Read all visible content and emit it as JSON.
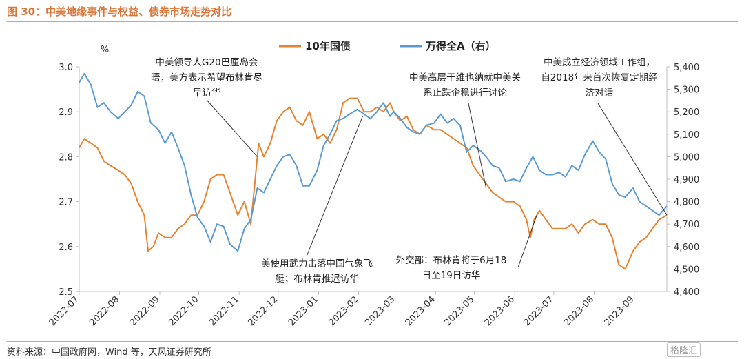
{
  "figure": {
    "title": "图 30：中美地缘事件与权益、债券市场走势对比",
    "source": "资料来源：中国政府网，Wind 等，天风证券研究所",
    "watermark": "格隆汇"
  },
  "chart_data": {
    "type": "line",
    "title": "",
    "left_unit": "%",
    "legend_position": "top-center",
    "grid": false,
    "x_tick_labels": [
      "2022-07",
      "2022-08",
      "2022-09",
      "2022-10",
      "2022-11",
      "2022-12",
      "2023-01",
      "2023-02",
      "2023-03",
      "2023-04",
      "2023-05",
      "2023-06",
      "2023-07",
      "2023-08",
      "2023-09"
    ],
    "x_range": [
      "2022-07-01",
      "2023-09-26"
    ],
    "y_left": {
      "min": 2.5,
      "max": 3.0,
      "ticks": [
        "2.5",
        "2.6",
        "2.7",
        "2.8",
        "2.9",
        "3.0"
      ]
    },
    "y_right": {
      "min": 4400,
      "max": 5400,
      "ticks": [
        "4,400",
        "4,500",
        "4,600",
        "4,700",
        "4,800",
        "4,900",
        "5,000",
        "5,100",
        "5,200",
        "5,300",
        "5,400"
      ]
    },
    "colors": {
      "bond": "#e8822e",
      "wind_a": "#5b9bd5",
      "annotation": "#333333",
      "axis": "#bfbfbf"
    },
    "series": [
      {
        "name": "10年国债",
        "axis": "left",
        "color": "#e8822e",
        "points": [
          [
            "2022-07-01",
            2.82
          ],
          [
            "2022-07-05",
            2.84
          ],
          [
            "2022-07-10",
            2.83
          ],
          [
            "2022-07-15",
            2.82
          ],
          [
            "2022-07-20",
            2.79
          ],
          [
            "2022-07-25",
            2.78
          ],
          [
            "2022-07-31",
            2.77
          ],
          [
            "2022-08-05",
            2.76
          ],
          [
            "2022-08-10",
            2.74
          ],
          [
            "2022-08-15",
            2.7
          ],
          [
            "2022-08-20",
            2.67
          ],
          [
            "2022-08-23",
            2.59
          ],
          [
            "2022-08-27",
            2.6
          ],
          [
            "2022-08-31",
            2.63
          ],
          [
            "2022-09-05",
            2.62
          ],
          [
            "2022-09-10",
            2.62
          ],
          [
            "2022-09-15",
            2.64
          ],
          [
            "2022-09-20",
            2.65
          ],
          [
            "2022-09-25",
            2.67
          ],
          [
            "2022-09-30",
            2.67
          ],
          [
            "2022-10-05",
            2.7
          ],
          [
            "2022-10-10",
            2.75
          ],
          [
            "2022-10-15",
            2.76
          ],
          [
            "2022-10-20",
            2.76
          ],
          [
            "2022-10-25",
            2.72
          ],
          [
            "2022-10-31",
            2.67
          ],
          [
            "2022-11-05",
            2.7
          ],
          [
            "2022-11-10",
            2.65
          ],
          [
            "2022-11-13",
            2.74
          ],
          [
            "2022-11-16",
            2.83
          ],
          [
            "2022-11-20",
            2.8
          ],
          [
            "2022-11-25",
            2.83
          ],
          [
            "2022-11-30",
            2.88
          ],
          [
            "2022-12-05",
            2.9
          ],
          [
            "2022-12-10",
            2.91
          ],
          [
            "2022-12-15",
            2.88
          ],
          [
            "2022-12-20",
            2.87
          ],
          [
            "2022-12-25",
            2.9
          ],
          [
            "2022-12-31",
            2.84
          ],
          [
            "2023-01-05",
            2.85
          ],
          [
            "2023-01-10",
            2.83
          ],
          [
            "2023-01-15",
            2.86
          ],
          [
            "2023-01-20",
            2.92
          ],
          [
            "2023-01-25",
            2.93
          ],
          [
            "2023-01-31",
            2.93
          ],
          [
            "2023-02-05",
            2.9
          ],
          [
            "2023-02-10",
            2.9
          ],
          [
            "2023-02-15",
            2.91
          ],
          [
            "2023-02-20",
            2.9
          ],
          [
            "2023-02-25",
            2.92
          ],
          [
            "2023-02-28",
            2.9
          ],
          [
            "2023-03-05",
            2.88
          ],
          [
            "2023-03-10",
            2.89
          ],
          [
            "2023-03-15",
            2.86
          ],
          [
            "2023-03-20",
            2.85
          ],
          [
            "2023-03-25",
            2.87
          ],
          [
            "2023-03-31",
            2.86
          ],
          [
            "2023-04-05",
            2.86
          ],
          [
            "2023-04-10",
            2.85
          ],
          [
            "2023-04-15",
            2.84
          ],
          [
            "2023-04-20",
            2.83
          ],
          [
            "2023-04-25",
            2.82
          ],
          [
            "2023-04-30",
            2.78
          ],
          [
            "2023-05-05",
            2.76
          ],
          [
            "2023-05-10",
            2.74
          ],
          [
            "2023-05-15",
            2.72
          ],
          [
            "2023-05-20",
            2.71
          ],
          [
            "2023-05-25",
            2.7
          ],
          [
            "2023-05-31",
            2.7
          ],
          [
            "2023-06-05",
            2.69
          ],
          [
            "2023-06-10",
            2.66
          ],
          [
            "2023-06-13",
            2.62
          ],
          [
            "2023-06-16",
            2.66
          ],
          [
            "2023-06-20",
            2.68
          ],
          [
            "2023-06-25",
            2.66
          ],
          [
            "2023-06-30",
            2.64
          ],
          [
            "2023-07-05",
            2.64
          ],
          [
            "2023-07-10",
            2.64
          ],
          [
            "2023-07-15",
            2.65
          ],
          [
            "2023-07-20",
            2.63
          ],
          [
            "2023-07-25",
            2.65
          ],
          [
            "2023-07-31",
            2.66
          ],
          [
            "2023-08-05",
            2.65
          ],
          [
            "2023-08-10",
            2.65
          ],
          [
            "2023-08-15",
            2.62
          ],
          [
            "2023-08-20",
            2.56
          ],
          [
            "2023-08-25",
            2.55
          ],
          [
            "2023-08-31",
            2.59
          ],
          [
            "2023-09-05",
            2.61
          ],
          [
            "2023-09-10",
            2.62
          ],
          [
            "2023-09-15",
            2.64
          ],
          [
            "2023-09-20",
            2.66
          ],
          [
            "2023-09-26",
            2.67
          ]
        ]
      },
      {
        "name": "万得全A（右）",
        "axis": "right",
        "color": "#5b9bd5",
        "points": [
          [
            "2022-07-01",
            5330
          ],
          [
            "2022-07-05",
            5370
          ],
          [
            "2022-07-10",
            5320
          ],
          [
            "2022-07-15",
            5220
          ],
          [
            "2022-07-20",
            5240
          ],
          [
            "2022-07-25",
            5200
          ],
          [
            "2022-07-31",
            5170
          ],
          [
            "2022-08-05",
            5200
          ],
          [
            "2022-08-10",
            5230
          ],
          [
            "2022-08-15",
            5290
          ],
          [
            "2022-08-20",
            5270
          ],
          [
            "2022-08-25",
            5150
          ],
          [
            "2022-08-31",
            5120
          ],
          [
            "2022-09-05",
            5060
          ],
          [
            "2022-09-10",
            5110
          ],
          [
            "2022-09-15",
            5040
          ],
          [
            "2022-09-20",
            4960
          ],
          [
            "2022-09-25",
            4830
          ],
          [
            "2022-09-30",
            4730
          ],
          [
            "2022-10-05",
            4690
          ],
          [
            "2022-10-10",
            4620
          ],
          [
            "2022-10-15",
            4700
          ],
          [
            "2022-10-20",
            4690
          ],
          [
            "2022-10-25",
            4610
          ],
          [
            "2022-10-31",
            4580
          ],
          [
            "2022-11-05",
            4680
          ],
          [
            "2022-11-10",
            4720
          ],
          [
            "2022-11-15",
            4860
          ],
          [
            "2022-11-20",
            4840
          ],
          [
            "2022-11-25",
            4900
          ],
          [
            "2022-11-30",
            4960
          ],
          [
            "2022-12-05",
            5000
          ],
          [
            "2022-12-10",
            5010
          ],
          [
            "2022-12-15",
            4960
          ],
          [
            "2022-12-20",
            4870
          ],
          [
            "2022-12-25",
            4870
          ],
          [
            "2022-12-31",
            4940
          ],
          [
            "2023-01-05",
            5050
          ],
          [
            "2023-01-10",
            5100
          ],
          [
            "2023-01-15",
            5160
          ],
          [
            "2023-01-20",
            5170
          ],
          [
            "2023-01-25",
            5190
          ],
          [
            "2023-01-31",
            5210
          ],
          [
            "2023-02-05",
            5190
          ],
          [
            "2023-02-10",
            5170
          ],
          [
            "2023-02-15",
            5200
          ],
          [
            "2023-02-20",
            5240
          ],
          [
            "2023-02-25",
            5180
          ],
          [
            "2023-02-28",
            5200
          ],
          [
            "2023-03-05",
            5170
          ],
          [
            "2023-03-10",
            5130
          ],
          [
            "2023-03-15",
            5110
          ],
          [
            "2023-03-20",
            5100
          ],
          [
            "2023-03-25",
            5140
          ],
          [
            "2023-03-31",
            5150
          ],
          [
            "2023-04-05",
            5190
          ],
          [
            "2023-04-10",
            5150
          ],
          [
            "2023-04-15",
            5170
          ],
          [
            "2023-04-20",
            5140
          ],
          [
            "2023-04-25",
            5020
          ],
          [
            "2023-04-30",
            5050
          ],
          [
            "2023-05-05",
            5030
          ],
          [
            "2023-05-10",
            5000
          ],
          [
            "2023-05-15",
            4960
          ],
          [
            "2023-05-20",
            4950
          ],
          [
            "2023-05-25",
            4890
          ],
          [
            "2023-05-31",
            4900
          ],
          [
            "2023-06-05",
            4890
          ],
          [
            "2023-06-10",
            4950
          ],
          [
            "2023-06-15",
            5000
          ],
          [
            "2023-06-20",
            4940
          ],
          [
            "2023-06-25",
            4920
          ],
          [
            "2023-06-30",
            4920
          ],
          [
            "2023-07-05",
            4930
          ],
          [
            "2023-07-10",
            4910
          ],
          [
            "2023-07-15",
            4960
          ],
          [
            "2023-07-20",
            4940
          ],
          [
            "2023-07-25",
            5010
          ],
          [
            "2023-07-31",
            5070
          ],
          [
            "2023-08-05",
            5020
          ],
          [
            "2023-08-10",
            4990
          ],
          [
            "2023-08-15",
            4880
          ],
          [
            "2023-08-20",
            4830
          ],
          [
            "2023-08-25",
            4820
          ],
          [
            "2023-08-31",
            4860
          ],
          [
            "2023-09-05",
            4800
          ],
          [
            "2023-09-10",
            4780
          ],
          [
            "2023-09-15",
            4760
          ],
          [
            "2023-09-20",
            4740
          ],
          [
            "2023-09-26",
            4780
          ]
        ]
      }
    ],
    "annotations": [
      {
        "lines": [
          "中美领导人G20巴厘岛会",
          "晤，美方表示希望布林肯尽",
          "早访华"
        ],
        "date": "2022-11-15",
        "axis": "left",
        "value": 2.8
      },
      {
        "lines": [
          "美使用武力击落中国气象飞",
          "艇；布林肯推迟访华"
        ],
        "date": "2023-02-04",
        "axis": "right",
        "value": 5180
      },
      {
        "lines": [
          "中美高层于维也纳就中美关",
          "系止跌企稳进行讨论"
        ],
        "date": "2023-05-10",
        "axis": "left",
        "value": 2.73
      },
      {
        "lines": [
          "外交部：布林肯将于6月18",
          "日至19日访华"
        ],
        "date": "2023-06-18",
        "axis": "left",
        "value": 2.67
      },
      {
        "lines": [
          "中美成立经济领域工作组，",
          "自2018年来首次恢复定期经",
          "济对话"
        ],
        "date": "2023-09-26",
        "axis": "left",
        "value": 2.67
      }
    ]
  }
}
